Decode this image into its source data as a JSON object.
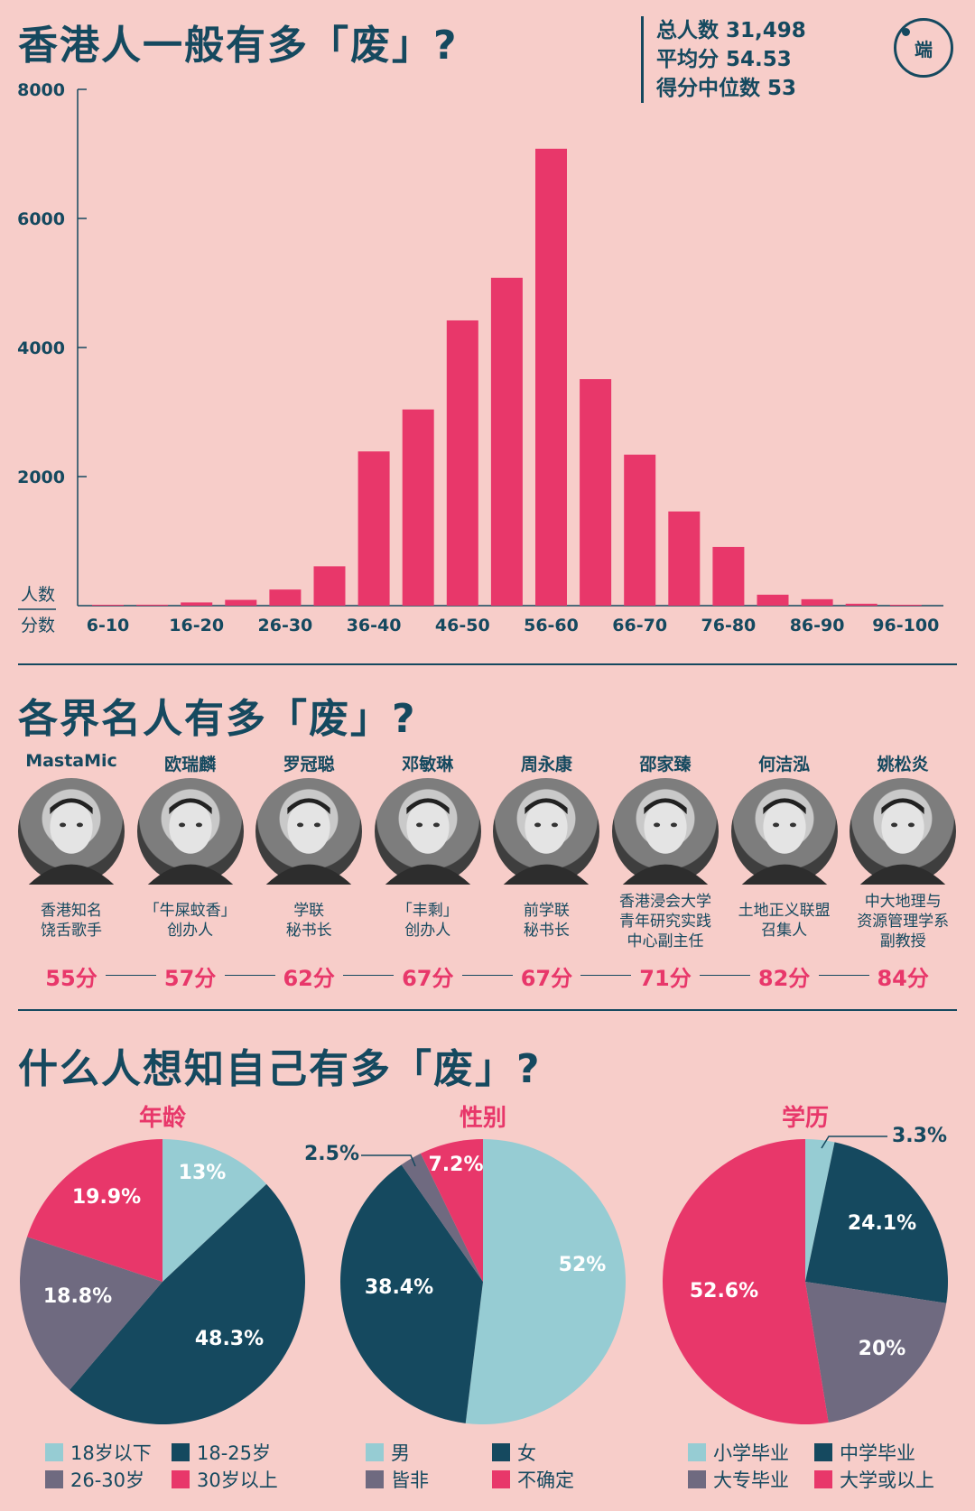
{
  "section1_title": "香港人一般有多「废」?",
  "stats": {
    "total": "总人数 31,498",
    "mean": "平均分 54.53",
    "median": "得分中位数 53"
  },
  "logo_text": "端",
  "chart_data": [
    {
      "type": "bar",
      "title": "香港人一般有多「废」?",
      "xlabel": "分数",
      "ylabel": "人数",
      "ylim": [
        0,
        8000
      ],
      "yticks": [
        2000,
        4000,
        6000,
        8000
      ],
      "categories": [
        "6-10",
        "11-15",
        "16-20",
        "21-25",
        "26-30",
        "31-35",
        "36-40",
        "41-45",
        "46-50",
        "51-55",
        "56-60",
        "61-65",
        "66-70",
        "71-75",
        "76-80",
        "81-85",
        "86-90",
        "91-95",
        "96-100"
      ],
      "tick_labels": [
        "6-10",
        "16-20",
        "26-30",
        "36-40",
        "46-50",
        "56-60",
        "66-70",
        "76-80",
        "86-90",
        "96-100"
      ],
      "values": [
        10,
        15,
        50,
        90,
        250,
        610,
        2390,
        3040,
        4420,
        5080,
        7080,
        3510,
        2340,
        1460,
        910,
        170,
        100,
        30,
        10
      ],
      "color": "#e8376a"
    },
    {
      "type": "pie",
      "title": "年龄",
      "labels": [
        "18岁以下",
        "18-25岁",
        "26-30岁",
        "30岁以上"
      ],
      "values": [
        13,
        48.3,
        18.8,
        19.9
      ],
      "value_labels": [
        "13%",
        "48.3%",
        "18.8%",
        "19.9%"
      ],
      "colors": [
        "#96ccd3",
        "#15495f",
        "#6f6a80",
        "#e8376a"
      ]
    },
    {
      "type": "pie",
      "title": "性别",
      "labels": [
        "男",
        "女",
        "皆非",
        "不确定"
      ],
      "values": [
        52,
        38.4,
        2.5,
        7.2
      ],
      "value_labels": [
        "52%",
        "38.4%",
        "2.5%",
        "7.2%"
      ],
      "colors": [
        "#96ccd3",
        "#15495f",
        "#6f6a80",
        "#e8376a"
      ]
    },
    {
      "type": "pie",
      "title": "学历",
      "labels": [
        "小学毕业",
        "中学毕业",
        "大专毕业",
        "大学或以上"
      ],
      "values": [
        3.3,
        24.1,
        20,
        52.6
      ],
      "value_labels": [
        "3.3%",
        "24.1%",
        "20%",
        "52.6%"
      ],
      "colors": [
        "#96ccd3",
        "#15495f",
        "#6f6a80",
        "#e8376a"
      ]
    }
  ],
  "section2_title": "各界名人有多「废」?",
  "celebrities": [
    {
      "name": "MastaMic",
      "role": "香港知名\n饶舌歌手",
      "score": "55分"
    },
    {
      "name": "欧瑞麟",
      "role": "「牛屎蚊香」\n创办人",
      "score": "57分"
    },
    {
      "name": "罗冠聪",
      "role": "学联\n秘书长",
      "score": "62分"
    },
    {
      "name": "邓敏琳",
      "role": "「丰剩」\n创办人",
      "score": "67分"
    },
    {
      "name": "周永康",
      "role": "前学联\n秘书长",
      "score": "67分"
    },
    {
      "name": "邵家臻",
      "role": "香港浸会大学\n青年研究实践\n中心副主任",
      "score": "71分"
    },
    {
      "name": "何洁泓",
      "role": "土地正义联盟\n召集人",
      "score": "82分"
    },
    {
      "name": "姚松炎",
      "role": "中大地理与\n资源管理学系\n副教授",
      "score": "84分"
    }
  ],
  "section3_title": "什么人想知自己有多「废」?"
}
